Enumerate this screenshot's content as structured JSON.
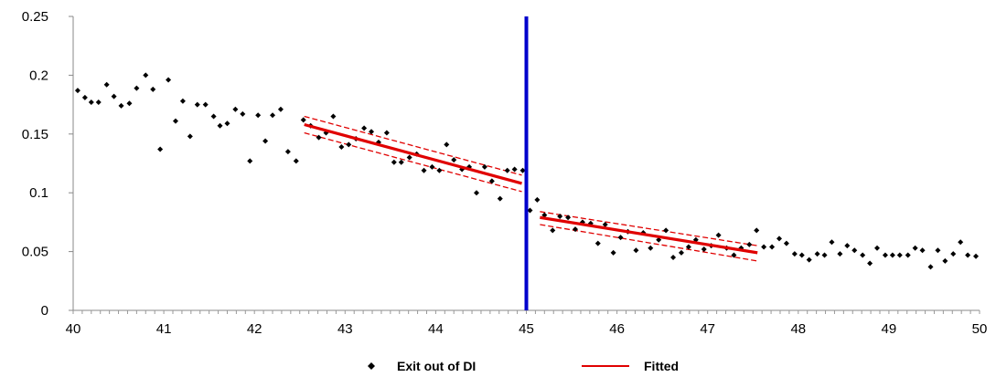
{
  "chart_data": {
    "type": "scatter",
    "xlim": [
      40,
      50
    ],
    "ylim": [
      0,
      0.25
    ],
    "x_ticks": [
      "40",
      "41",
      "42",
      "43",
      "44",
      "45",
      "46",
      "47",
      "48",
      "49",
      "50"
    ],
    "y_ticks": [
      "0",
      "0.05",
      "0.1",
      "0.15",
      "0.2",
      "0.25"
    ],
    "grid": false,
    "legend_position": "bottom",
    "cutoff_x": 45,
    "colors": {
      "points": "#000000",
      "fitted": "#e00000",
      "cutoff": "#0000cc"
    },
    "series": [
      {
        "name": "Exit out of DI",
        "type": "scatter",
        "points": [
          [
            40.05,
            0.187
          ],
          [
            40.13,
            0.181
          ],
          [
            40.2,
            0.177
          ],
          [
            40.28,
            0.177
          ],
          [
            40.37,
            0.192
          ],
          [
            40.45,
            0.182
          ],
          [
            40.53,
            0.174
          ],
          [
            40.62,
            0.176
          ],
          [
            40.7,
            0.189
          ],
          [
            40.8,
            0.2
          ],
          [
            40.88,
            0.188
          ],
          [
            40.96,
            0.137
          ],
          [
            41.05,
            0.196
          ],
          [
            41.13,
            0.161
          ],
          [
            41.21,
            0.178
          ],
          [
            41.29,
            0.148
          ],
          [
            41.37,
            0.175
          ],
          [
            41.46,
            0.175
          ],
          [
            41.55,
            0.165
          ],
          [
            41.62,
            0.157
          ],
          [
            41.7,
            0.159
          ],
          [
            41.79,
            0.171
          ],
          [
            41.87,
            0.167
          ],
          [
            41.95,
            0.127
          ],
          [
            42.04,
            0.166
          ],
          [
            42.12,
            0.144
          ],
          [
            42.2,
            0.166
          ],
          [
            42.29,
            0.171
          ],
          [
            42.37,
            0.135
          ],
          [
            42.46,
            0.127
          ],
          [
            42.54,
            0.162
          ],
          [
            42.62,
            0.157
          ],
          [
            42.71,
            0.147
          ],
          [
            42.79,
            0.151
          ],
          [
            42.87,
            0.165
          ],
          [
            42.96,
            0.139
          ],
          [
            43.04,
            0.141
          ],
          [
            43.12,
            0.146
          ],
          [
            43.21,
            0.155
          ],
          [
            43.29,
            0.152
          ],
          [
            43.37,
            0.143
          ],
          [
            43.46,
            0.151
          ],
          [
            43.54,
            0.126
          ],
          [
            43.62,
            0.126
          ],
          [
            43.71,
            0.13
          ],
          [
            43.79,
            0.133
          ],
          [
            43.87,
            0.119
          ],
          [
            43.96,
            0.122
          ],
          [
            44.04,
            0.119
          ],
          [
            44.12,
            0.141
          ],
          [
            44.2,
            0.128
          ],
          [
            44.29,
            0.12
          ],
          [
            44.37,
            0.122
          ],
          [
            44.45,
            0.1
          ],
          [
            44.54,
            0.122
          ],
          [
            44.62,
            0.11
          ],
          [
            44.71,
            0.095
          ],
          [
            44.79,
            0.119
          ],
          [
            44.87,
            0.12
          ],
          [
            44.96,
            0.119
          ],
          [
            45.04,
            0.085
          ],
          [
            45.12,
            0.094
          ],
          [
            45.2,
            0.081
          ],
          [
            45.29,
            0.068
          ],
          [
            45.37,
            0.08
          ],
          [
            45.46,
            0.079
          ],
          [
            45.54,
            0.069
          ],
          [
            45.62,
            0.075
          ],
          [
            45.71,
            0.074
          ],
          [
            45.79,
            0.057
          ],
          [
            45.87,
            0.073
          ],
          [
            45.96,
            0.049
          ],
          [
            46.04,
            0.062
          ],
          [
            46.12,
            0.067
          ],
          [
            46.21,
            0.051
          ],
          [
            46.29,
            0.066
          ],
          [
            46.37,
            0.053
          ],
          [
            46.46,
            0.06
          ],
          [
            46.54,
            0.068
          ],
          [
            46.62,
            0.045
          ],
          [
            46.71,
            0.049
          ],
          [
            46.79,
            0.054
          ],
          [
            46.87,
            0.06
          ],
          [
            46.96,
            0.052
          ],
          [
            47.04,
            0.055
          ],
          [
            47.12,
            0.064
          ],
          [
            47.21,
            0.053
          ],
          [
            47.29,
            0.047
          ],
          [
            47.37,
            0.053
          ],
          [
            47.46,
            0.056
          ],
          [
            47.54,
            0.068
          ],
          [
            47.62,
            0.054
          ],
          [
            47.71,
            0.054
          ],
          [
            47.79,
            0.061
          ],
          [
            47.87,
            0.057
          ],
          [
            47.96,
            0.048
          ],
          [
            48.04,
            0.047
          ],
          [
            48.12,
            0.043
          ],
          [
            48.21,
            0.048
          ],
          [
            48.29,
            0.047
          ],
          [
            48.37,
            0.058
          ],
          [
            48.46,
            0.048
          ],
          [
            48.54,
            0.055
          ],
          [
            48.62,
            0.051
          ],
          [
            48.71,
            0.047
          ],
          [
            48.79,
            0.04
          ],
          [
            48.87,
            0.053
          ],
          [
            48.96,
            0.047
          ],
          [
            49.04,
            0.047
          ],
          [
            49.12,
            0.047
          ],
          [
            49.21,
            0.047
          ],
          [
            49.29,
            0.053
          ],
          [
            49.37,
            0.051
          ],
          [
            49.46,
            0.037
          ],
          [
            49.54,
            0.051
          ],
          [
            49.62,
            0.042
          ],
          [
            49.71,
            0.048
          ],
          [
            49.79,
            0.058
          ],
          [
            49.87,
            0.047
          ],
          [
            49.96,
            0.046
          ]
        ]
      },
      {
        "name": "Fitted",
        "type": "line",
        "segments": [
          {
            "x": [
              42.55,
              44.95
            ],
            "y": [
              0.158,
              0.108
            ],
            "lower": [
              0.151,
              0.101
            ],
            "upper": [
              0.165,
              0.115
            ]
          },
          {
            "x": [
              45.15,
              47.55
            ],
            "y": [
              0.079,
              0.049
            ],
            "lower": [
              0.073,
              0.042
            ],
            "upper": [
              0.084,
              0.055
            ]
          }
        ]
      }
    ]
  },
  "legend": {
    "items": [
      {
        "label": "Exit out of DI",
        "marker": "diamond"
      },
      {
        "label": "Fitted",
        "marker": "line"
      }
    ]
  }
}
